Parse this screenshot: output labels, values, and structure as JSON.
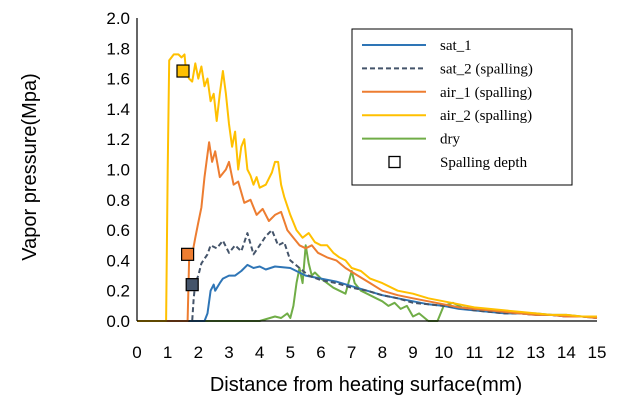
{
  "chart_data": {
    "type": "line",
    "title": "",
    "xlabel": "Distance from heating surface(mm)",
    "ylabel": "Vapor pressure(Mpa)",
    "xlim": [
      0,
      15
    ],
    "ylim": [
      0,
      2.0
    ],
    "x_ticks": [
      "0",
      "1",
      "2",
      "3",
      "4",
      "5",
      "6",
      "7",
      "8",
      "9",
      "10",
      "11",
      "12",
      "13",
      "14",
      "15"
    ],
    "y_ticks": [
      "0.0",
      "0.2",
      "0.4",
      "0.6",
      "0.8",
      "1.0",
      "1.2",
      "1.4",
      "1.6",
      "1.8",
      "2.0"
    ],
    "grid": false,
    "legend_position": "top-right",
    "series": [
      {
        "name": "sat_1",
        "color": "#2E75B6",
        "dash": "solid",
        "points": [
          [
            0,
            0
          ],
          [
            2.2,
            0
          ],
          [
            2.3,
            0.05
          ],
          [
            2.4,
            0.2
          ],
          [
            2.5,
            0.24
          ],
          [
            2.55,
            0.2
          ],
          [
            2.7,
            0.25
          ],
          [
            2.8,
            0.28
          ],
          [
            3.0,
            0.3
          ],
          [
            3.2,
            0.3
          ],
          [
            3.4,
            0.33
          ],
          [
            3.6,
            0.37
          ],
          [
            3.8,
            0.35
          ],
          [
            4.0,
            0.36
          ],
          [
            4.2,
            0.34
          ],
          [
            4.5,
            0.36
          ],
          [
            5.0,
            0.35
          ],
          [
            5.5,
            0.3
          ],
          [
            6.0,
            0.28
          ],
          [
            6.5,
            0.26
          ],
          [
            7.0,
            0.23
          ],
          [
            7.5,
            0.2
          ],
          [
            8.0,
            0.17
          ],
          [
            8.5,
            0.15
          ],
          [
            9.0,
            0.13
          ],
          [
            9.5,
            0.11
          ],
          [
            10.0,
            0.1
          ],
          [
            10.5,
            0.08
          ],
          [
            11.0,
            0.07
          ],
          [
            11.5,
            0.06
          ],
          [
            12.0,
            0.05
          ],
          [
            12.5,
            0.05
          ],
          [
            13.0,
            0.04
          ],
          [
            13.5,
            0.04
          ],
          [
            14.0,
            0.03
          ],
          [
            14.5,
            0.03
          ],
          [
            15.0,
            0.02
          ]
        ]
      },
      {
        "name": "sat_2 (spalling)",
        "color": "#44546A",
        "dash": "dashed",
        "points": [
          [
            0,
            0
          ],
          [
            1.8,
            0
          ],
          [
            1.85,
            0.15
          ],
          [
            1.9,
            0.25
          ],
          [
            2.0,
            0.3
          ],
          [
            2.1,
            0.38
          ],
          [
            2.3,
            0.44
          ],
          [
            2.4,
            0.5
          ],
          [
            2.6,
            0.48
          ],
          [
            2.8,
            0.53
          ],
          [
            3.0,
            0.45
          ],
          [
            3.2,
            0.5
          ],
          [
            3.4,
            0.46
          ],
          [
            3.6,
            0.58
          ],
          [
            3.8,
            0.44
          ],
          [
            4.0,
            0.5
          ],
          [
            4.2,
            0.56
          ],
          [
            4.4,
            0.6
          ],
          [
            4.6,
            0.5
          ],
          [
            4.8,
            0.52
          ],
          [
            5.0,
            0.4
          ],
          [
            5.3,
            0.35
          ],
          [
            5.6,
            0.3
          ],
          [
            6.0,
            0.27
          ],
          [
            6.5,
            0.25
          ],
          [
            7.0,
            0.22
          ],
          [
            7.5,
            0.2
          ],
          [
            8.0,
            0.17
          ],
          [
            8.5,
            0.15
          ],
          [
            9.0,
            0.12
          ],
          [
            9.5,
            0.11
          ],
          [
            10.0,
            0.1
          ],
          [
            10.5,
            0.09
          ],
          [
            11.0,
            0.07
          ],
          [
            11.5,
            0.06
          ],
          [
            12.0,
            0.05
          ],
          [
            12.5,
            0.05
          ],
          [
            13.0,
            0.04
          ],
          [
            13.5,
            0.04
          ],
          [
            14.0,
            0.03
          ],
          [
            14.5,
            0.03
          ],
          [
            15.0,
            0.02
          ]
        ]
      },
      {
        "name": "air_1 (spalling)",
        "color": "#ED7D31",
        "dash": "solid",
        "points": [
          [
            0,
            0
          ],
          [
            1.65,
            0
          ],
          [
            1.7,
            0.4
          ],
          [
            1.75,
            0.45
          ],
          [
            1.8,
            0.44
          ],
          [
            1.9,
            0.55
          ],
          [
            2.0,
            0.65
          ],
          [
            2.1,
            0.75
          ],
          [
            2.2,
            0.95
          ],
          [
            2.3,
            1.1
          ],
          [
            2.35,
            1.18
          ],
          [
            2.45,
            1.05
          ],
          [
            2.55,
            1.12
          ],
          [
            2.7,
            0.95
          ],
          [
            2.9,
            1.0
          ],
          [
            3.0,
            1.05
          ],
          [
            3.15,
            0.9
          ],
          [
            3.3,
            0.92
          ],
          [
            3.5,
            0.78
          ],
          [
            3.7,
            0.8
          ],
          [
            3.9,
            0.7
          ],
          [
            4.1,
            0.74
          ],
          [
            4.3,
            0.66
          ],
          [
            4.5,
            0.7
          ],
          [
            4.7,
            0.72
          ],
          [
            4.9,
            0.6
          ],
          [
            5.1,
            0.55
          ],
          [
            5.3,
            0.5
          ],
          [
            5.5,
            0.48
          ],
          [
            5.7,
            0.5
          ],
          [
            5.9,
            0.45
          ],
          [
            6.2,
            0.42
          ],
          [
            6.5,
            0.4
          ],
          [
            6.8,
            0.35
          ],
          [
            7.2,
            0.3
          ],
          [
            7.6,
            0.25
          ],
          [
            8.0,
            0.2
          ],
          [
            8.5,
            0.17
          ],
          [
            9.0,
            0.15
          ],
          [
            9.5,
            0.13
          ],
          [
            10.0,
            0.11
          ],
          [
            10.5,
            0.09
          ],
          [
            11.0,
            0.08
          ],
          [
            11.5,
            0.07
          ],
          [
            12.0,
            0.06
          ],
          [
            12.5,
            0.05
          ],
          [
            13.0,
            0.04
          ],
          [
            13.5,
            0.04
          ],
          [
            14.0,
            0.03
          ],
          [
            14.5,
            0.03
          ],
          [
            15.0,
            0.02
          ]
        ]
      },
      {
        "name": "air_2 (spalling)",
        "color": "#FFC000",
        "dash": "solid",
        "points": [
          [
            0,
            0
          ],
          [
            0.95,
            0
          ],
          [
            1.0,
            1.0
          ],
          [
            1.05,
            1.72
          ],
          [
            1.2,
            1.76
          ],
          [
            1.35,
            1.76
          ],
          [
            1.45,
            1.74
          ],
          [
            1.55,
            1.76
          ],
          [
            1.6,
            1.64
          ],
          [
            1.7,
            1.6
          ],
          [
            1.8,
            1.58
          ],
          [
            1.9,
            1.7
          ],
          [
            2.0,
            1.6
          ],
          [
            2.1,
            1.68
          ],
          [
            2.2,
            1.55
          ],
          [
            2.3,
            1.6
          ],
          [
            2.4,
            1.45
          ],
          [
            2.5,
            1.5
          ],
          [
            2.6,
            1.32
          ],
          [
            2.7,
            1.5
          ],
          [
            2.8,
            1.65
          ],
          [
            2.9,
            1.5
          ],
          [
            3.0,
            1.3
          ],
          [
            3.1,
            1.15
          ],
          [
            3.2,
            1.25
          ],
          [
            3.3,
            1.0
          ],
          [
            3.4,
            1.15
          ],
          [
            3.5,
            1.2
          ],
          [
            3.6,
            1.0
          ],
          [
            3.7,
            0.96
          ],
          [
            3.8,
            0.9
          ],
          [
            3.9,
            0.95
          ],
          [
            4.0,
            0.88
          ],
          [
            4.2,
            0.9
          ],
          [
            4.4,
            0.98
          ],
          [
            4.5,
            1.05
          ],
          [
            4.6,
            1.05
          ],
          [
            4.7,
            0.9
          ],
          [
            4.8,
            0.82
          ],
          [
            5.0,
            0.7
          ],
          [
            5.2,
            0.6
          ],
          [
            5.4,
            0.55
          ],
          [
            5.6,
            0.58
          ],
          [
            5.8,
            0.52
          ],
          [
            6.0,
            0.5
          ],
          [
            6.2,
            0.5
          ],
          [
            6.4,
            0.45
          ],
          [
            6.6,
            0.42
          ],
          [
            6.8,
            0.4
          ],
          [
            7.0,
            0.35
          ],
          [
            7.3,
            0.33
          ],
          [
            7.6,
            0.28
          ],
          [
            8.0,
            0.25
          ],
          [
            8.5,
            0.2
          ],
          [
            9.0,
            0.18
          ],
          [
            9.5,
            0.15
          ],
          [
            10.0,
            0.13
          ],
          [
            10.5,
            0.11
          ],
          [
            11.0,
            0.09
          ],
          [
            11.5,
            0.08
          ],
          [
            12.0,
            0.07
          ],
          [
            12.5,
            0.06
          ],
          [
            13.0,
            0.05
          ],
          [
            13.5,
            0.04
          ],
          [
            14.0,
            0.04
          ],
          [
            14.5,
            0.03
          ],
          [
            15.0,
            0.03
          ]
        ]
      },
      {
        "name": "dry",
        "color": "#70AD47",
        "dash": "solid",
        "points": [
          [
            0,
            0
          ],
          [
            4.0,
            0
          ],
          [
            4.5,
            0.03
          ],
          [
            4.7,
            0.02
          ],
          [
            4.9,
            0.05
          ],
          [
            5.0,
            0.02
          ],
          [
            5.1,
            0.1
          ],
          [
            5.2,
            0.25
          ],
          [
            5.3,
            0.35
          ],
          [
            5.4,
            0.25
          ],
          [
            5.5,
            0.5
          ],
          [
            5.6,
            0.38
          ],
          [
            5.7,
            0.3
          ],
          [
            5.8,
            0.32
          ],
          [
            6.0,
            0.28
          ],
          [
            6.2,
            0.25
          ],
          [
            6.4,
            0.22
          ],
          [
            6.6,
            0.2
          ],
          [
            6.8,
            0.18
          ],
          [
            7.0,
            0.33
          ],
          [
            7.1,
            0.25
          ],
          [
            7.3,
            0.2
          ],
          [
            7.5,
            0.18
          ],
          [
            7.8,
            0.15
          ],
          [
            8.0,
            0.13
          ],
          [
            8.2,
            0.1
          ],
          [
            8.4,
            0.12
          ],
          [
            8.6,
            0.08
          ],
          [
            8.8,
            0.1
          ],
          [
            9.0,
            0.03
          ],
          [
            9.2,
            0.05
          ],
          [
            9.5,
            0.0
          ],
          [
            9.8,
            0.0
          ],
          [
            10.0,
            0.1
          ],
          [
            10.3,
            0.12
          ],
          [
            10.6,
            0.09
          ],
          [
            11.0,
            0.08
          ],
          [
            11.5,
            0.07
          ],
          [
            12.0,
            0.06
          ],
          [
            12.5,
            0.05
          ],
          [
            13.0,
            0.05
          ],
          [
            13.5,
            0.04
          ],
          [
            14.0,
            0.04
          ],
          [
            14.5,
            0.03
          ],
          [
            15.0,
            0.03
          ]
        ]
      }
    ],
    "spalling_depth": {
      "name": "Spalling depth",
      "points": [
        {
          "x": 1.8,
          "y": 0.24,
          "color": "#44546A"
        },
        {
          "x": 1.65,
          "y": 0.44,
          "color": "#ED7D31"
        },
        {
          "x": 1.5,
          "y": 1.65,
          "color": "#FFC000"
        }
      ]
    }
  }
}
